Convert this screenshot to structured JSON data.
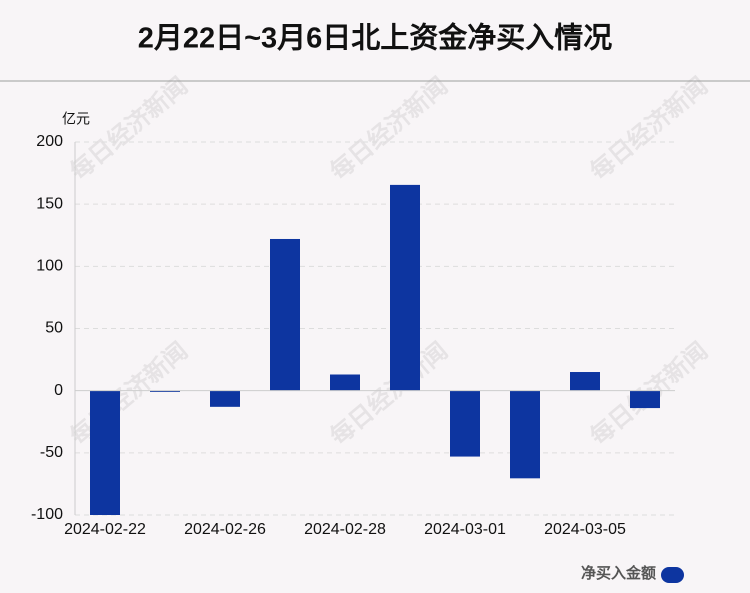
{
  "chart_data": {
    "type": "bar",
    "title": "2月22日~3月6日北上资金净买入情况",
    "y_unit": "亿元",
    "categories": [
      "2024-02-22",
      null,
      "2024-02-26",
      null,
      "2024-02-28",
      null,
      "2024-03-01",
      null,
      "2024-03-05",
      null
    ],
    "series": [
      {
        "name": "净买入金额",
        "color": "#0d35a0",
        "values": [
          -100,
          -1,
          -13,
          122,
          13,
          165.5,
          -53,
          -70.5,
          15,
          -14
        ]
      }
    ],
    "ylim": [
      -100,
      200
    ],
    "yticks": [
      -100,
      -50,
      0,
      50,
      100,
      150,
      200
    ],
    "grid": true,
    "legend": "bottom-right",
    "watermark": "每日经济新闻"
  }
}
